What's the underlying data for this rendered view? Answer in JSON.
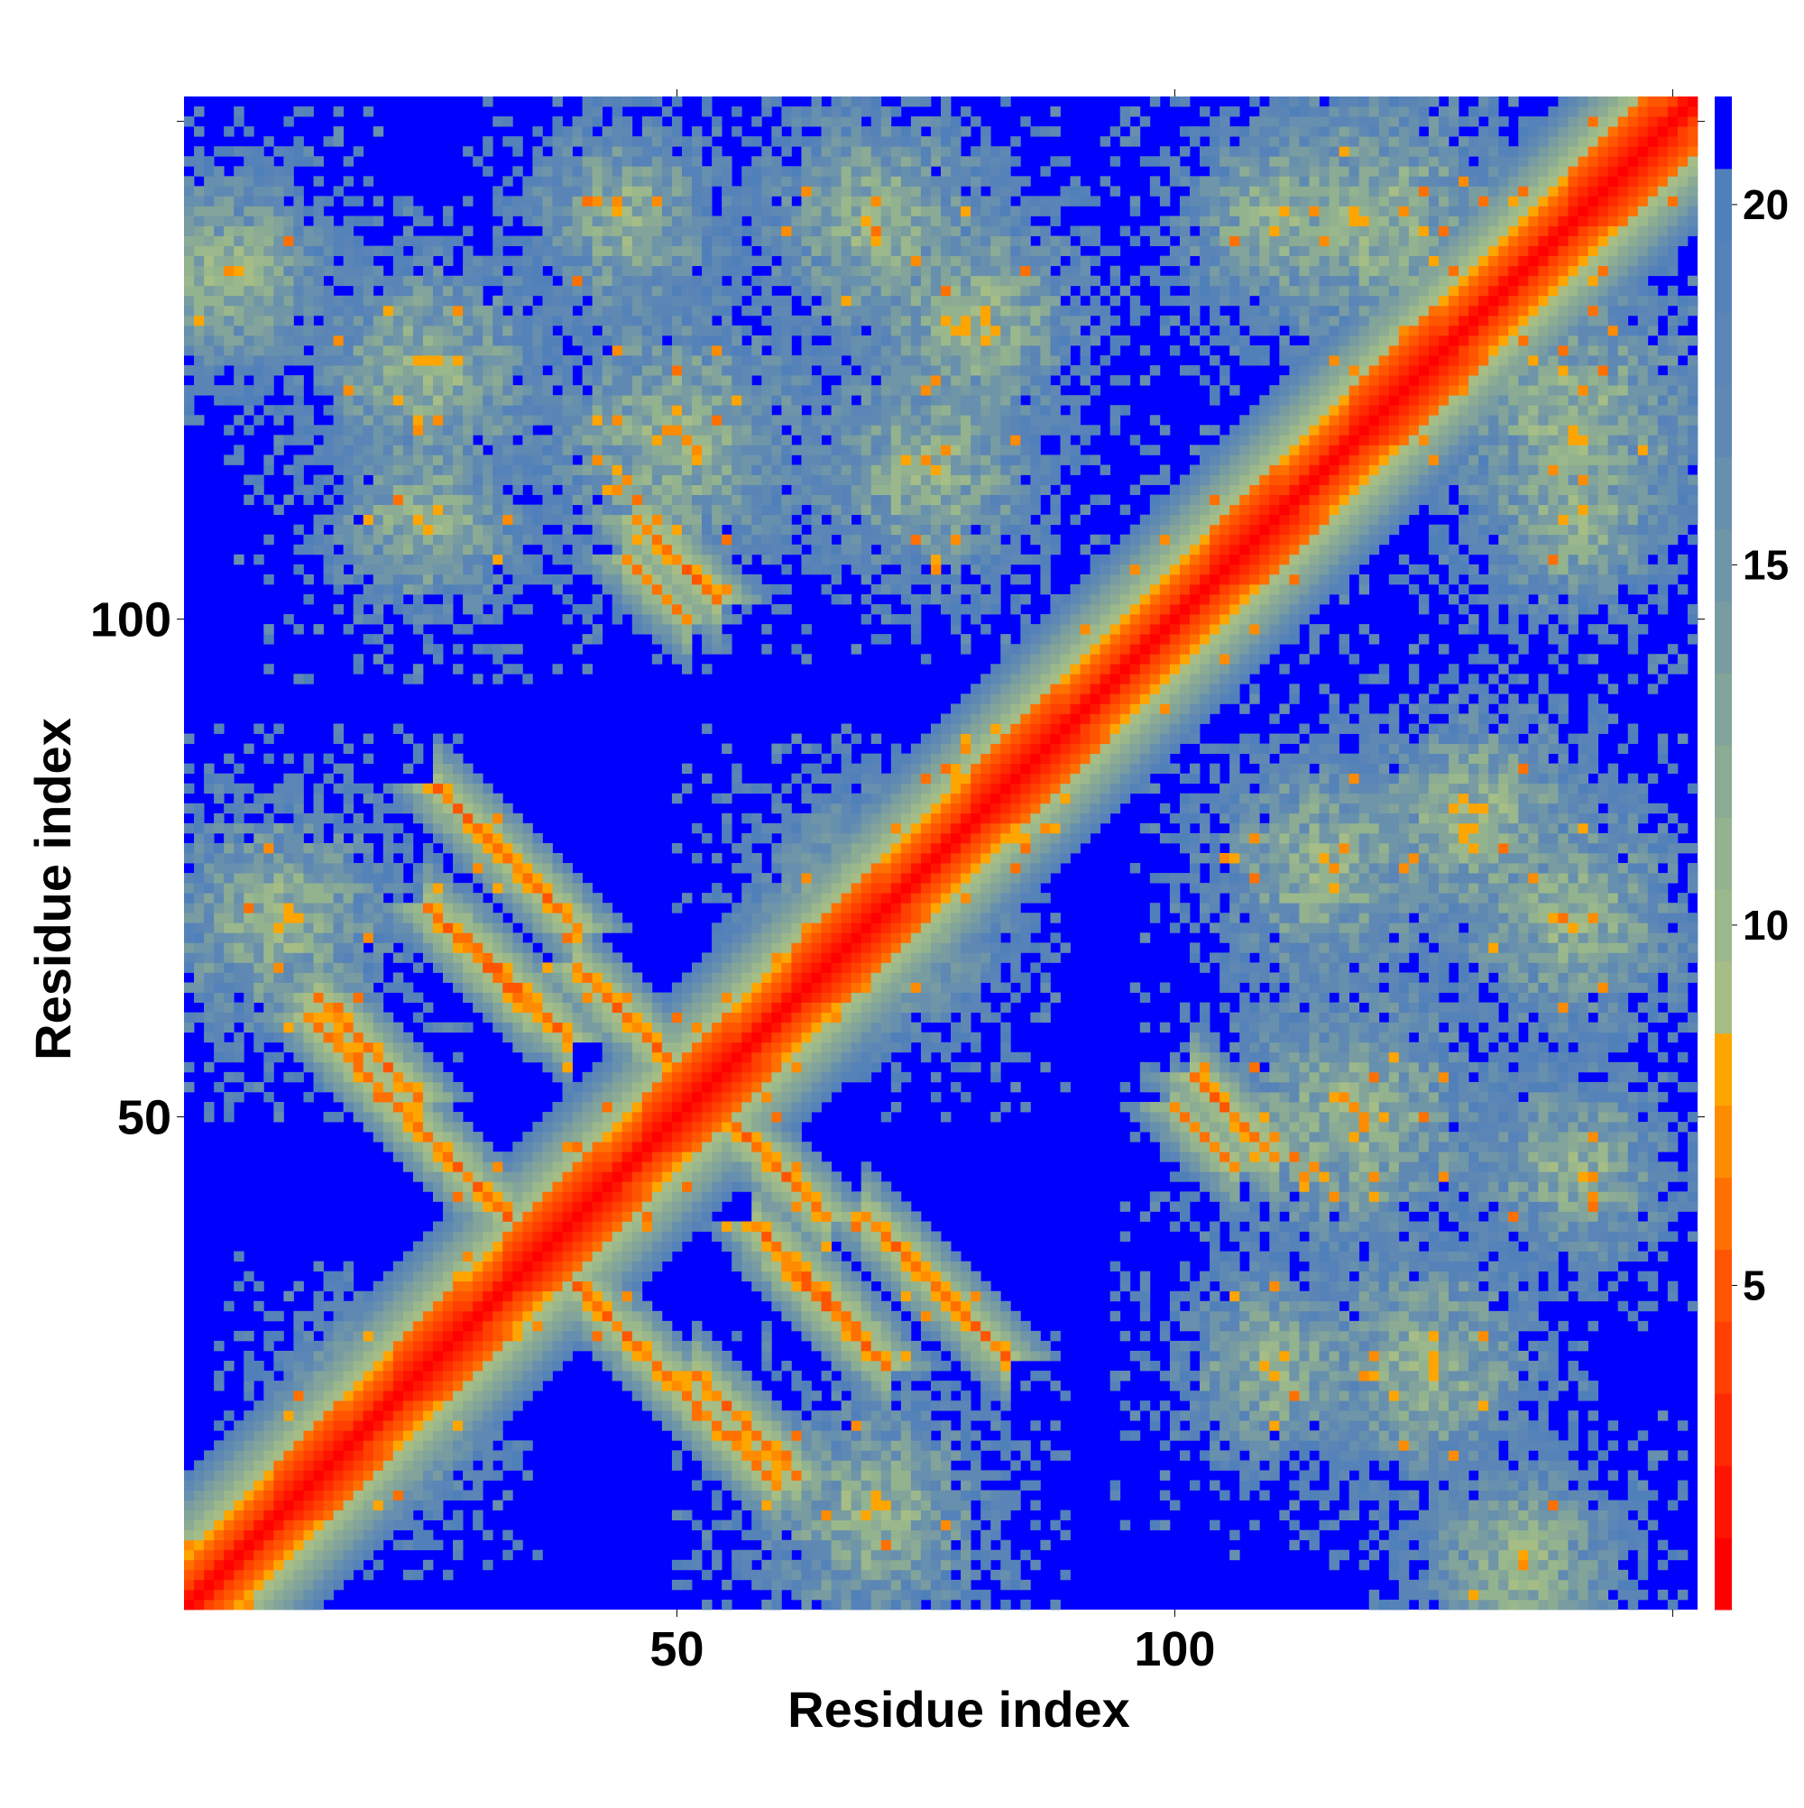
{
  "chart_data": {
    "type": "heatmap",
    "title": "",
    "xlabel": "Residue index",
    "ylabel": "Residue index",
    "n_residues": 152,
    "xlim": [
      0.5,
      152.5
    ],
    "ylim": [
      0.5,
      152.5
    ],
    "x_ticks": [
      50,
      100,
      150
    ],
    "x_tick_labels": [
      "50",
      "100",
      ""
    ],
    "y_ticks": [
      50,
      100,
      150
    ],
    "y_tick_labels": [
      "50",
      "100",
      ""
    ],
    "colorbar": {
      "range": [
        0.5,
        21.5
      ],
      "ticks": [
        5,
        10,
        15,
        20
      ],
      "tick_labels": [
        "5",
        "10",
        "15",
        "20"
      ],
      "levels": [
        {
          "max": 1.5,
          "color": "#ff0000"
        },
        {
          "max": 2.5,
          "color": "#ff1400"
        },
        {
          "max": 3.5,
          "color": "#ff2a00"
        },
        {
          "max": 4.5,
          "color": "#ff4000"
        },
        {
          "max": 5.5,
          "color": "#ff5500"
        },
        {
          "max": 6.5,
          "color": "#ff7000"
        },
        {
          "max": 7.5,
          "color": "#ff8c00"
        },
        {
          "max": 8.5,
          "color": "#ffa500"
        },
        {
          "max": 9.5,
          "color": "#a6bd86"
        },
        {
          "max": 10.5,
          "color": "#9bb88c"
        },
        {
          "max": 11.5,
          "color": "#93b38f"
        },
        {
          "max": 12.5,
          "color": "#8bab94"
        },
        {
          "max": 13.5,
          "color": "#82a49a"
        },
        {
          "max": 14.5,
          "color": "#789ca1"
        },
        {
          "max": 15.5,
          "color": "#6f95a8"
        },
        {
          "max": 16.5,
          "color": "#678fae"
        },
        {
          "max": 17.5,
          "color": "#5f89b3"
        },
        {
          "max": 18.5,
          "color": "#5a85b6"
        },
        {
          "max": 19.5,
          "color": "#5582b8"
        },
        {
          "max": 20.5,
          "color": "#5080ba"
        },
        {
          "max": 21.5,
          "color": "#0000ff"
        }
      ]
    },
    "cell_value_legend": "distance between residues; diagonal ~1, blue = >20",
    "features": {
      "helices": [
        [
          10,
          16
        ],
        [
          22,
          28
        ],
        [
          33,
          42
        ],
        [
          47,
          55
        ],
        [
          62,
          70
        ],
        [
          80,
          88
        ],
        [
          104,
          110
        ],
        [
          118,
          126
        ],
        [
          140,
          148
        ]
      ],
      "antiparallel_contacts": [
        {
          "center": [
            25,
            48
          ],
          "length": 24,
          "strength": 6
        },
        {
          "center": [
            57,
            19
          ],
          "length": 10,
          "strength": 6
        },
        {
          "center": [
            45,
            60
          ],
          "length": 10,
          "strength": 6
        },
        {
          "center": [
            33,
            76
          ],
          "length": 14,
          "strength": 6
        },
        {
          "center": [
            63,
            34
          ],
          "length": 10,
          "strength": 6
        },
        {
          "center": [
            66,
            30
          ],
          "length": 10,
          "strength": 6
        },
        {
          "center": [
            48,
            103
          ],
          "length": 6,
          "strength": 7
        },
        {
          "center": [
            106,
            50
          ],
          "length": 8,
          "strength": 6
        }
      ],
      "diffuse_blocks": [
        {
          "center": [
            5,
            135
          ],
          "radius": 10
        },
        {
          "center": [
            25,
            125
          ],
          "radius": 12
        },
        {
          "center": [
            50,
            118
          ],
          "radius": 14
        },
        {
          "center": [
            80,
            130
          ],
          "radius": 12
        },
        {
          "center": [
            110,
            140
          ],
          "radius": 10
        },
        {
          "center": [
            140,
            120
          ],
          "radius": 14
        },
        {
          "center": [
            140,
            70
          ],
          "radius": 12
        },
        {
          "center": [
            115,
            75
          ],
          "radius": 12
        },
        {
          "center": [
            110,
            25
          ],
          "radius": 10
        },
        {
          "center": [
            135,
            5
          ],
          "radius": 10
        },
        {
          "center": [
            70,
            70
          ],
          "radius": 12
        },
        {
          "center": [
            20,
            20
          ],
          "radius": 10
        },
        {
          "center": [
            10,
            70
          ],
          "radius": 12
        },
        {
          "center": [
            140,
            45
          ],
          "radius": 10
        }
      ]
    }
  }
}
